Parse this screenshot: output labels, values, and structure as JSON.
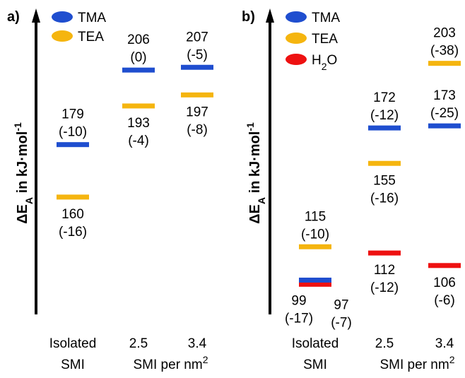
{
  "chart_data": [
    {
      "type": "energy-level",
      "panel_label": "a)",
      "ylabel": "ΔEA in kJ·mol-1",
      "ylabel_parts": {
        "delta": "Δ",
        "e": "E",
        "sub": "A",
        "mid": " in kJ·mol",
        "sup": "-1"
      },
      "categories": [
        {
          "line1": "Isolated",
          "line2": "SMI"
        },
        {
          "line1": "2.5",
          "line2": ""
        },
        {
          "line1": "3.4",
          "line2": ""
        }
      ],
      "category_axis_note": {
        "text": "SMI per nm",
        "sup": "2"
      },
      "ylim": [
        150,
        215
      ],
      "legend": [
        {
          "name": "TMA",
          "color": "#1f4ecf"
        },
        {
          "name": "TEA",
          "color": "#f5b50f"
        }
      ],
      "levels": [
        {
          "series": "TMA",
          "category": 0,
          "value": 179,
          "delta": "(-10)",
          "label_pos": "above"
        },
        {
          "series": "TEA",
          "category": 0,
          "value": 160,
          "delta": "(-16)",
          "label_pos": "below"
        },
        {
          "series": "TMA",
          "category": 1,
          "value": 206,
          "delta": "(0)",
          "label_pos": "above"
        },
        {
          "series": "TEA",
          "category": 1,
          "value": 193,
          "delta": "(-4)",
          "label_pos": "below"
        },
        {
          "series": "TMA",
          "category": 2,
          "value": 207,
          "delta": "(-5)",
          "label_pos": "above"
        },
        {
          "series": "TEA",
          "category": 2,
          "value": 197,
          "delta": "(-8)",
          "label_pos": "below"
        }
      ]
    },
    {
      "type": "energy-level",
      "panel_label": "b)",
      "ylabel": "ΔEA in kJ·mol-1",
      "ylabel_parts": {
        "delta": "Δ",
        "e": "E",
        "sub": "A",
        "mid": " in kJ·mol",
        "sup": "-1"
      },
      "categories": [
        {
          "line1": "Isolated",
          "line2": "SMI"
        },
        {
          "line1": "2.5",
          "line2": ""
        },
        {
          "line1": "3.4",
          "line2": ""
        }
      ],
      "category_axis_note": {
        "text": "SMI per nm",
        "sup": "2"
      },
      "ylim": [
        90,
        210
      ],
      "legend": [
        {
          "name": "TMA",
          "color": "#1f4ecf"
        },
        {
          "name": "TEA",
          "color": "#f5b50f"
        },
        {
          "name": "H2O",
          "color": "#ee1111",
          "base": "H",
          "sub": "2",
          "rest": "O"
        }
      ],
      "levels": [
        {
          "series": "TEA",
          "category": 0,
          "value": 115,
          "delta": "(-10)",
          "label_pos": "above"
        },
        {
          "series": "H2O",
          "category": 0,
          "value": 97,
          "delta": "(-7)",
          "label_pos": "below-right"
        },
        {
          "series": "TMA",
          "category": 0,
          "value": 99,
          "delta": "(-17)",
          "label_pos": "below-left"
        },
        {
          "series": "TMA",
          "category": 1,
          "value": 172,
          "delta": "(-12)",
          "label_pos": "above"
        },
        {
          "series": "TEA",
          "category": 1,
          "value": 155,
          "delta": "(-16)",
          "label_pos": "below"
        },
        {
          "series": "H2O",
          "category": 1,
          "value": 112,
          "delta": "(-12)",
          "label_pos": "below"
        },
        {
          "series": "TEA",
          "category": 2,
          "value": 203,
          "delta": "(-38)",
          "label_pos": "above"
        },
        {
          "series": "TMA",
          "category": 2,
          "value": 173,
          "delta": "(-25)",
          "label_pos": "above"
        },
        {
          "series": "H2O",
          "category": 2,
          "value": 106,
          "delta": "(-6)",
          "label_pos": "below"
        }
      ]
    }
  ]
}
